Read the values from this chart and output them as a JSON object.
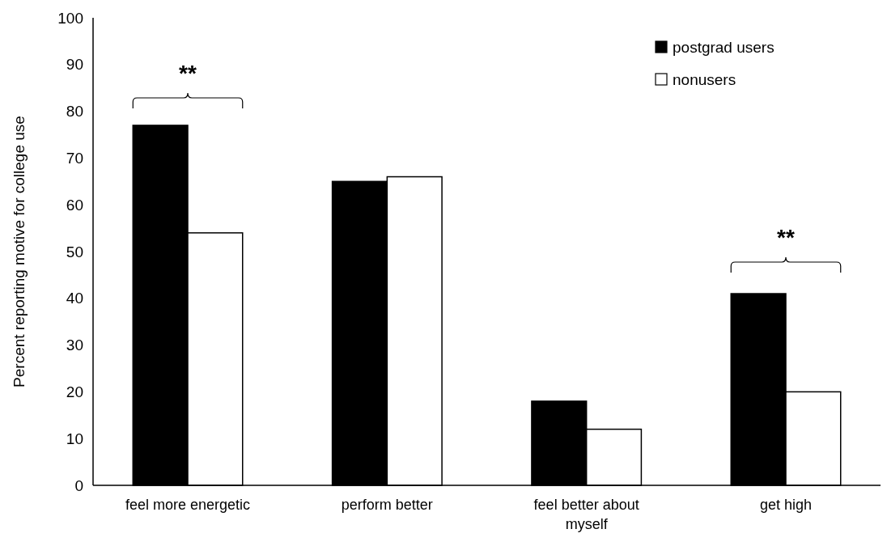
{
  "chart_data": {
    "type": "bar",
    "ylabel": "Percent reporting motive for college use",
    "categories": [
      "feel more energetic",
      "perform better",
      "feel better about myself",
      "get high"
    ],
    "series": [
      {
        "name": "postgrad users",
        "color": "#000000",
        "values": [
          77,
          65,
          18,
          41
        ]
      },
      {
        "name": "nonusers",
        "color": "#ffffff",
        "values": [
          54,
          66,
          12,
          20
        ]
      }
    ],
    "ylim": [
      0,
      100
    ],
    "yticks": [
      0,
      10,
      20,
      30,
      40,
      50,
      60,
      70,
      80,
      90,
      100
    ],
    "grid": false,
    "legend": "top right",
    "annotations": [
      "**",
      "**"
    ]
  }
}
